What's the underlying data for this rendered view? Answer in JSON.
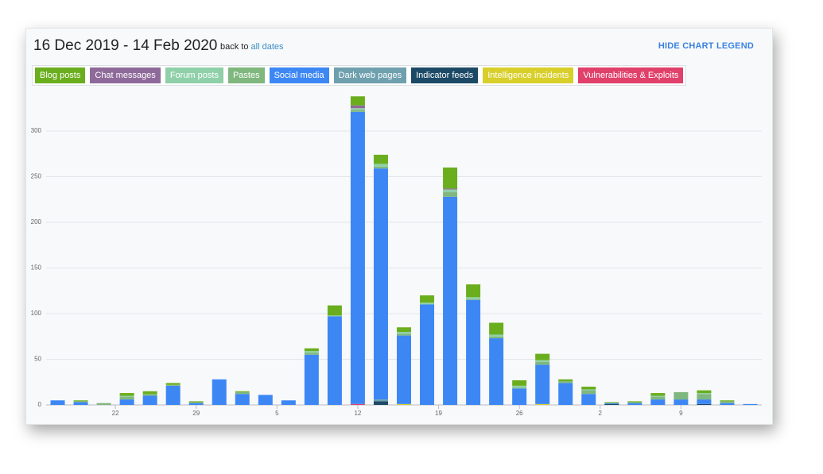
{
  "header": {
    "back_to": "back to",
    "link": "all dates",
    "legend_toggle": "HIDE CHART LEGEND"
  },
  "chart_data": {
    "type": "stacked-bar",
    "title": "16 Dec 2019 - 14 Feb 2020",
    "x": [
      1,
      3,
      5,
      7,
      9,
      11,
      13,
      15,
      17,
      19,
      21,
      23,
      25,
      27,
      29,
      31,
      33,
      35,
      37,
      39,
      41,
      43,
      45,
      47,
      49,
      51,
      53,
      55,
      57,
      59,
      61
    ],
    "xlim": [
      0,
      62
    ],
    "xticks": [
      {
        "value": 6,
        "label": "22"
      },
      {
        "value": 13,
        "label": "29"
      },
      {
        "value": 20,
        "label": "5"
      },
      {
        "value": 27,
        "label": "12"
      },
      {
        "value": 34,
        "label": "19"
      },
      {
        "value": 41,
        "label": "26"
      },
      {
        "value": 48,
        "label": "2"
      },
      {
        "value": 55,
        "label": "9"
      }
    ],
    "ylim": [
      0,
      350
    ],
    "yticks": [
      0,
      50,
      100,
      150,
      200,
      250,
      300
    ],
    "grid": true,
    "series": [
      {
        "name": "Blog posts",
        "color": "#6aae1e",
        "values": [
          0,
          1,
          0,
          3,
          3,
          2,
          1,
          0,
          1,
          0,
          0,
          3,
          11,
          10,
          10,
          5,
          8,
          23,
          14,
          13,
          6,
          7,
          2,
          3,
          1,
          1,
          3,
          0,
          3,
          1,
          0
        ]
      },
      {
        "name": "Chat messages",
        "color": "#8e6a9a",
        "values": [
          0,
          0,
          0,
          0,
          0,
          0,
          0,
          0,
          0,
          0,
          0,
          0,
          0,
          3,
          0,
          0,
          0,
          1,
          0,
          0,
          0,
          0,
          0,
          0,
          0,
          0,
          0,
          0,
          0,
          0,
          0
        ]
      },
      {
        "name": "Forum posts",
        "color": "#8fd0a8",
        "values": [
          0,
          0,
          0,
          1,
          0,
          0,
          0,
          0,
          0,
          0,
          0,
          2,
          1,
          2,
          3,
          2,
          2,
          3,
          2,
          2,
          2,
          2,
          0,
          1,
          0,
          0,
          1,
          0,
          1,
          0,
          0
        ]
      },
      {
        "name": "Pastes",
        "color": "#7fb77e",
        "values": [
          0,
          1,
          2,
          3,
          2,
          1,
          1,
          0,
          2,
          0,
          0,
          2,
          0,
          2,
          2,
          2,
          0,
          5,
          1,
          2,
          1,
          3,
          2,
          4,
          0,
          1,
          3,
          8,
          6,
          2,
          0
        ]
      },
      {
        "name": "Social media",
        "color": "#3d87f5",
        "values": [
          5,
          3,
          0,
          6,
          10,
          21,
          2,
          28,
          12,
          11,
          5,
          55,
          97,
          320,
          253,
          75,
          110,
          228,
          115,
          73,
          18,
          43,
          24,
          12,
          1,
          2,
          6,
          6,
          5,
          2,
          1
        ]
      },
      {
        "name": "Dark web pages",
        "color": "#6fa0ae",
        "values": [
          0,
          0,
          0,
          0,
          0,
          0,
          0,
          0,
          0,
          0,
          0,
          0,
          0,
          0,
          2,
          0,
          0,
          0,
          0,
          0,
          0,
          0,
          0,
          0,
          0,
          0,
          0,
          0,
          0,
          0,
          0
        ]
      },
      {
        "name": "Indicator feeds",
        "color": "#1c4a66",
        "values": [
          0,
          0,
          0,
          0,
          0,
          0,
          0,
          0,
          0,
          0,
          0,
          0,
          0,
          0,
          4,
          0,
          0,
          0,
          0,
          0,
          0,
          0,
          0,
          0,
          1,
          0,
          0,
          0,
          1,
          0,
          0
        ]
      },
      {
        "name": "Intelligence incidents",
        "color": "#d8cf2a",
        "values": [
          0,
          0,
          0,
          0,
          0,
          0,
          0,
          0,
          0,
          0,
          0,
          0,
          0,
          0,
          0,
          1,
          0,
          0,
          0,
          0,
          0,
          1,
          0,
          0,
          0,
          0,
          0,
          0,
          0,
          0,
          0
        ]
      },
      {
        "name": "Vulnerabilities & Exploits",
        "color": "#e0406a",
        "values": [
          0,
          0,
          0,
          0,
          0,
          0,
          0,
          0,
          0,
          0,
          0,
          0,
          0,
          1,
          0,
          0,
          0,
          0,
          0,
          0,
          0,
          0,
          0,
          0,
          0,
          0,
          0,
          0,
          0,
          0,
          0
        ]
      }
    ]
  }
}
